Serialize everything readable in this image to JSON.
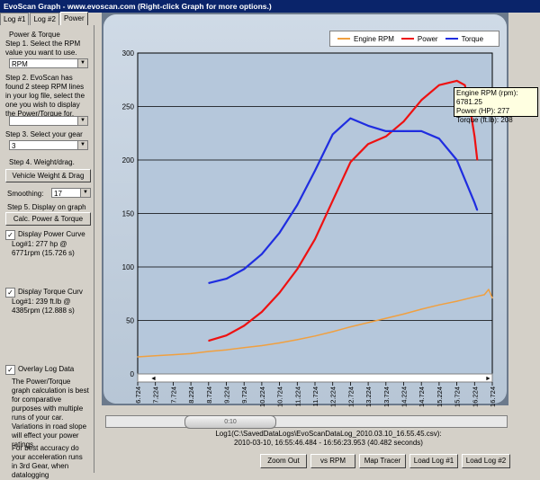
{
  "window": {
    "title": "EvoScan Graph - www.evoscan.com  (Right-click Graph for more options.)"
  },
  "tabs": [
    {
      "label": "Log #1"
    },
    {
      "label": "Log #2"
    },
    {
      "label": "Power"
    }
  ],
  "panel": {
    "group_title": "Power & Torque",
    "step1": "Step 1. Select the RPM value you want to use.",
    "rpm_select": "RPM",
    "step2": "Step 2. EvoScan has found 2 steep RPM lines in your log file, select the one you wish to display the Power/Torque for.",
    "line_select": "",
    "step3": "Step 3. Select your gear",
    "gear_select": "3",
    "step4": "Step 4. Weight/drag.",
    "weight_button": "Vehicle Weight & Drag",
    "smoothing_label": "Smoothing:",
    "smoothing_value": "17",
    "step5": "Step 5. Display on graph",
    "calc_button": "Calc. Power & Torque",
    "power_check_label": "Display Power Curve",
    "power_check": "✓",
    "power_result": "Log#1: 277 hp @ 6771rpm (15.726 s)",
    "torque_check_label": "Display Torque Curv",
    "torque_check": "✓",
    "torque_result": "Log#1: 239 ft.lb @ 4385rpm (12.888 s)",
    "overlay_check_label": "Overlay Log Data",
    "overlay_check": "✓",
    "note1": "The Power/Torque graph calculation is best for comparative purposes with multiple runs of your car. Variations in road slope will effect your power ratings.",
    "note2": "For best accuracy do your acceleration runs in 3rd Gear, when datalogging"
  },
  "legend": [
    {
      "name": "Engine RPM",
      "color": "#f0a040"
    },
    {
      "name": "Power",
      "color": "#ee1111"
    },
    {
      "name": "Torque",
      "color": "#1f2de0"
    }
  ],
  "tooltip": {
    "line1": "Engine RPM (rpm): 6781.25",
    "line2": "Power (HP): 277",
    "line3": "Torque (ft.lb): 208"
  },
  "slider": {
    "thumb_label": "0:10"
  },
  "info": {
    "line1": "Log1(C:\\SavedDataLogs\\EvoScanDataLog_2010.03.10_16.55.45.csv):",
    "line2": "2010-03-10,  16:55:46.484 - 16:56:23.953 (40.482 seconds)"
  },
  "buttons": {
    "zoom_out": "Zoom Out",
    "vs_rpm": "vs RPM",
    "map_tracer": "Map Tracer",
    "load_log1": "Load Log #1",
    "load_log2": "Load Log #2"
  },
  "chart_data": {
    "type": "line",
    "ylim": [
      0,
      300
    ],
    "yticks": [
      "0",
      "50",
      "100",
      "150",
      "200",
      "250",
      "300"
    ],
    "xticks": [
      "6.724",
      "7.224",
      "7.724",
      "8.224",
      "8.724",
      "9.224",
      "9.724",
      "10.224",
      "10.724",
      "11.224",
      "11.724",
      "12.224",
      "12.724",
      "13.224",
      "13.724",
      "14.224",
      "14.724",
      "15.224",
      "15.724",
      "16.224",
      "16.724"
    ],
    "grid": "horizontal",
    "legend_position": "top-right",
    "series": [
      {
        "name": "Engine RPM",
        "color": "#f0a040",
        "x": [
          6.724,
          7.224,
          7.724,
          8.224,
          8.724,
          9.224,
          9.724,
          10.224,
          10.724,
          11.224,
          11.724,
          12.224,
          12.724,
          13.224,
          13.724,
          14.224,
          14.724,
          15.224,
          15.724,
          16.224,
          16.5,
          16.62,
          16.724
        ],
        "y": [
          16,
          17,
          18,
          19,
          21,
          22.5,
          24.5,
          26.5,
          29,
          32,
          35.5,
          39.5,
          44,
          48,
          52,
          56,
          60.5,
          64.5,
          68,
          72,
          74,
          79,
          71
        ]
      },
      {
        "name": "Power",
        "color": "#ee1111",
        "x": [
          8.724,
          9.224,
          9.724,
          10.224,
          10.724,
          11.224,
          11.724,
          12.224,
          12.724,
          13.224,
          13.724,
          14.224,
          14.724,
          15.224,
          15.724,
          15.95,
          16.1,
          16.224,
          16.3
        ],
        "y": [
          31,
          36,
          45,
          58,
          76,
          98,
          126,
          162,
          198,
          215,
          222,
          236,
          256,
          270,
          274,
          270,
          248,
          222,
          200
        ]
      },
      {
        "name": "Torque",
        "color": "#1f2de0",
        "x": [
          8.724,
          9.224,
          9.724,
          10.224,
          10.724,
          11.224,
          11.724,
          12.224,
          12.724,
          13.224,
          13.724,
          14.224,
          14.724,
          15.224,
          15.724,
          16.224,
          16.3
        ],
        "y": [
          85,
          89,
          98,
          112,
          132,
          158,
          190,
          224,
          239,
          232,
          227,
          227,
          227,
          220,
          200,
          160,
          153
        ]
      }
    ]
  }
}
